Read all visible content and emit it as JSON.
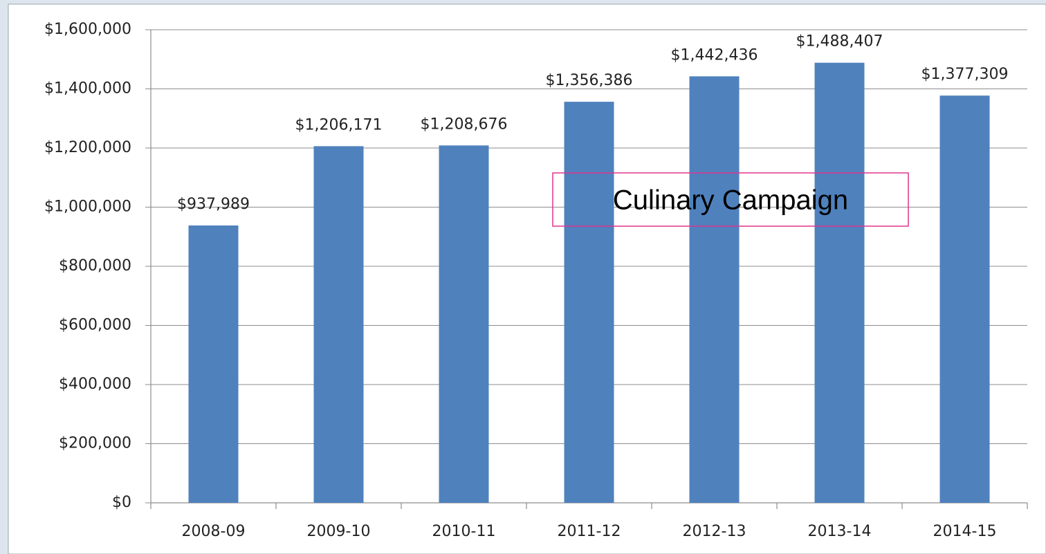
{
  "chart_data": {
    "type": "bar",
    "categories": [
      "2008-09",
      "2009-10",
      "2010-11",
      "2011-12",
      "2012-13",
      "2013-14",
      "2014-15"
    ],
    "values": [
      937989,
      1206171,
      1208676,
      1356386,
      1442436,
      1488407,
      1377309
    ],
    "value_labels": [
      "$937,989",
      "$1,206,171",
      "$1,208,676",
      "$1,356,386",
      "$1,442,436",
      "$1,488,407",
      "$1,377,309"
    ],
    "color": "#4f81bd",
    "ylim": [
      0,
      1600000
    ],
    "yticks": [
      {
        "value": 0,
        "label": "$0"
      },
      {
        "value": 200000,
        "label": "$200,000"
      },
      {
        "value": 400000,
        "label": "$400,000"
      },
      {
        "value": 600000,
        "label": "$600,000"
      },
      {
        "value": 800000,
        "label": "$800,000"
      },
      {
        "value": 1000000,
        "label": "$1,000,000"
      },
      {
        "value": 1200000,
        "label": "$1,200,000"
      },
      {
        "value": 1400000,
        "label": "$1,400,000"
      },
      {
        "value": 1600000,
        "label": "$1,600,000"
      }
    ],
    "grid": true,
    "annotation": "Culinary Campaign"
  }
}
